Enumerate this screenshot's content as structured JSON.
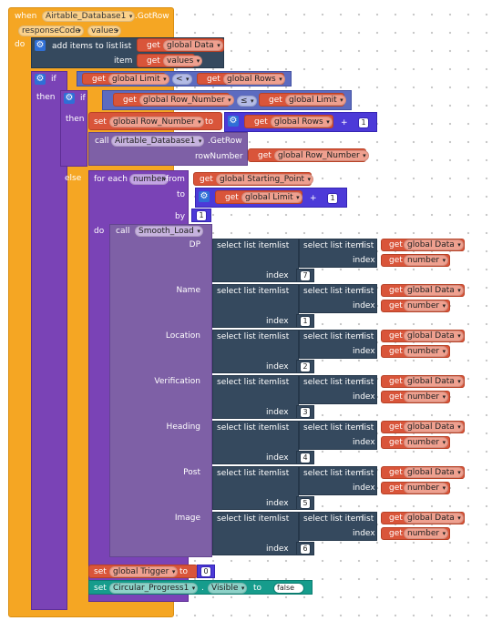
{
  "event": {
    "when": "when",
    "component": "Airtable_Database1",
    "event_name": ".GotRow",
    "params": [
      "responseCode",
      "values"
    ],
    "do": "do"
  },
  "add_items": {
    "label": "add items to list",
    "list_label": "list",
    "item_label": "item",
    "list_var": "global Data",
    "item_var": "values"
  },
  "if1": {
    "if": "if",
    "then": "then",
    "else": "else",
    "lhs": "global Limit",
    "op": "<",
    "rhs": "global Rows"
  },
  "if2": {
    "if": "if",
    "then": "then",
    "lhs": "global Row_Number",
    "op": "≤",
    "rhs": "global Limit"
  },
  "set_row": {
    "set": "set",
    "var": "global Row_Number",
    "to": "to",
    "get_rows": "global Rows",
    "plus": "+",
    "one": "1"
  },
  "call_getrow": {
    "call": "call",
    "component": "Airtable_Database1",
    "method": ".GetRow",
    "param_label": "rowNumber",
    "param_var": "global Row_Number"
  },
  "foreach": {
    "label": "for each",
    "var": "number",
    "from": "from",
    "from_var": "global Starting_Point",
    "to": "to",
    "to_var": "global Limit",
    "plus": "+",
    "one": "1",
    "by": "by",
    "by_val": "1",
    "do": "do"
  },
  "smooth": {
    "call": "call",
    "proc": "Smooth_Load",
    "sel": "select list item",
    "list": "list",
    "index": "index",
    "data_var": "global Data",
    "num_var": "number",
    "params": [
      {
        "name": "DP",
        "index": "7"
      },
      {
        "name": "Name",
        "index": "1"
      },
      {
        "name": "Location",
        "index": "2"
      },
      {
        "name": "Verification",
        "index": "3"
      },
      {
        "name": "Heading",
        "index": "4"
      },
      {
        "name": "Post",
        "index": "5"
      },
      {
        "name": "Image",
        "index": "6"
      }
    ]
  },
  "set_trigger": {
    "set": "set",
    "var": "global Trigger",
    "to": "to",
    "value": "0"
  },
  "set_visible": {
    "set": "set",
    "component": "Circular_Progress1",
    "dot": ".",
    "prop": "Visible",
    "to": "to",
    "value": "false"
  },
  "get_word": "get",
  "colors": {
    "event": "#F5A623",
    "variables": "#D9553A",
    "lists": "#35495E",
    "control": "#7A43B6",
    "math": "#4C3AD8",
    "procedures": "#7E60A6",
    "components": "#169C8C"
  }
}
